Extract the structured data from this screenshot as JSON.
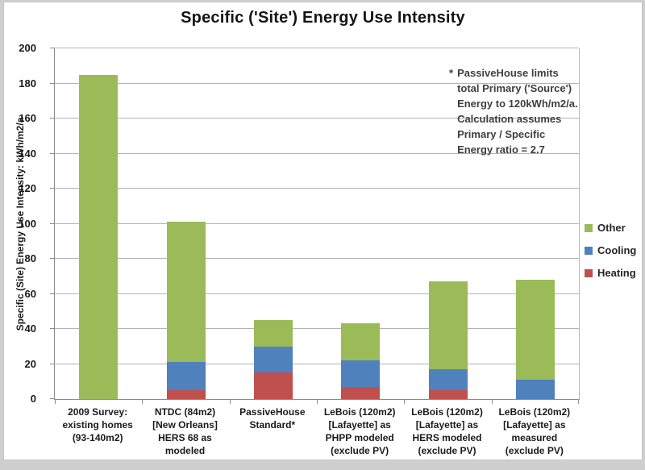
{
  "chart_data": {
    "type": "bar",
    "stacked": true,
    "title": "Specific ('Site') Energy Use Intensity",
    "ylabel": "Specific (Site) Energy Use Intensity: kWh/m2/a",
    "xlabel": "",
    "ylim": [
      0,
      200
    ],
    "ytick_step": 20,
    "yticks": [
      0,
      20,
      40,
      60,
      80,
      100,
      120,
      140,
      160,
      180,
      200
    ],
    "grid": true,
    "legend_position": "right",
    "categories": [
      "2009 Survey:\nexisting homes\n(93-140m2)",
      "NTDC (84m2)\n[New Orleans]\nHERS 68 as\nmodeled",
      "PassiveHouse\nStandard*",
      "LeBois (120m2)\n[Lafayette] as\nPHPP modeled\n(exclude PV)",
      "LeBois (120m2)\n[Lafayette] as\nHERS modeled\n(exclude PV)",
      "LeBois (120m2)\n[Lafayette] as\nmeasured\n(exclude PV)"
    ],
    "series": [
      {
        "name": "Heating",
        "color": "#C0504D",
        "values": [
          0,
          5,
          15,
          7,
          5,
          0
        ]
      },
      {
        "name": "Cooling",
        "color": "#4F81BD",
        "values": [
          0,
          16,
          15,
          15,
          12,
          11
        ]
      },
      {
        "name": "Other",
        "color": "#9BBB59",
        "values": [
          185,
          80,
          15,
          21,
          50,
          57
        ]
      }
    ],
    "totals": [
      185,
      101,
      45,
      43,
      67,
      68
    ],
    "legend_order_top_to_bottom": [
      "Other",
      "Cooling",
      "Heating"
    ],
    "annotation": {
      "bullet": "*",
      "text": "PassiveHouse limits\ntotal Primary ('Source')\nEnergy to 120kWh/m2/a.\nCalculation assumes\nPrimary / Specific\nEnergy ratio = 2.7"
    },
    "colors": {
      "gridline": "#b3b3b3",
      "axis": "#8c8c8c",
      "heating": "#C0504D",
      "cooling": "#4F81BD",
      "other": "#9BBB59"
    }
  }
}
